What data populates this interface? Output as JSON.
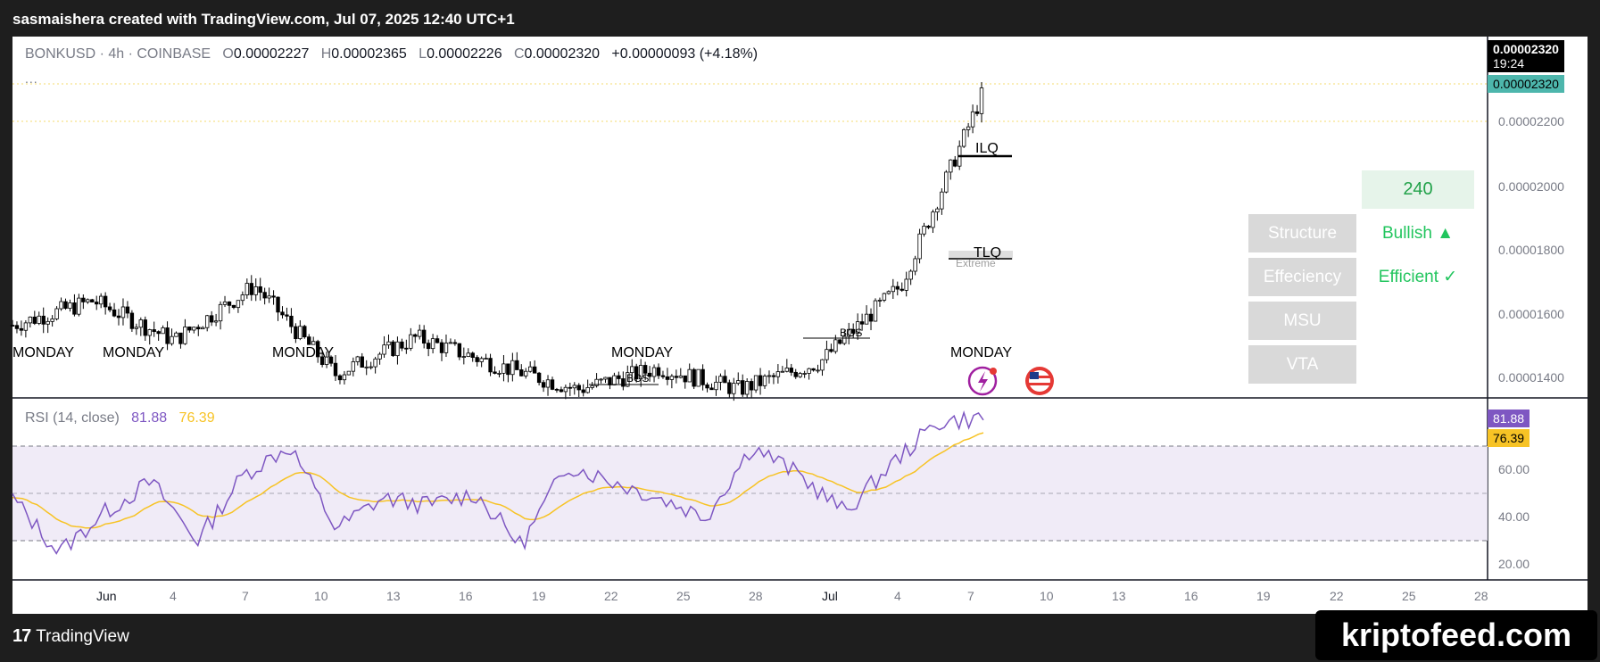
{
  "header": {
    "credit": "sasmaishera created with TradingView.com, Jul 07, 2025 12:40 UTC+1"
  },
  "legend": {
    "symbol": "BONKUSD · 4h · COINBASE",
    "o_label": "O",
    "o_value": "0.00002227",
    "h_label": "H",
    "h_value": "0.00002365",
    "l_label": "L",
    "l_value": "0.00002226",
    "c_label": "C",
    "c_value": "0.00002320",
    "change": "+0.00000093 (+4.18%)",
    "more": "..."
  },
  "rsi_legend": {
    "name": "RSI (14, close)",
    "rsi": "81.88",
    "ma": "76.39"
  },
  "price_tags": {
    "last": "0.00002320",
    "countdown": "19:24",
    "last2": "0.00002320",
    "rsi": "81.88",
    "rsi_ma": "76.39"
  },
  "price_axis": [
    "0.00002200",
    "0.00002000",
    "0.00001800",
    "0.00001600",
    "0.00001400"
  ],
  "rsi_axis": [
    "60.00",
    "40.00",
    "20.00"
  ],
  "time_axis": [
    "Jun",
    "4",
    "7",
    "10",
    "13",
    "16",
    "19",
    "22",
    "25",
    "28",
    "Jul",
    "4",
    "7",
    "10",
    "13",
    "16",
    "19",
    "22",
    "25",
    "28"
  ],
  "annotations": {
    "ilq": "ILQ",
    "tlq": "TLQ",
    "extreme": "Extreme",
    "bos": "BOS",
    "day_label": "MONDAY"
  },
  "table": {
    "timeframe": "240",
    "rows": [
      {
        "label": "Structure",
        "value": "Bullish ▲"
      },
      {
        "label": "Effeciency",
        "value": "Efficient ✓"
      },
      {
        "label": "MSU",
        "value": ""
      },
      {
        "label": "VTA",
        "value": ""
      }
    ]
  },
  "footer": {
    "brand": "TradingView"
  },
  "watermark": "kriptofeed.com",
  "colors": {
    "up": "#26a69a",
    "down": "#000000",
    "rsi": "#7e57c2",
    "rsi_ma": "#f7c325",
    "last_price_bg": "#4db6ac",
    "accent_green": "#22c55e"
  },
  "chart_data": [
    {
      "type": "candlestick",
      "title": "BONKUSD · 4h · COINBASE",
      "x": [
        "Jun",
        "4",
        "7",
        "10",
        "13",
        "16",
        "19",
        "22",
        "25",
        "28",
        "Jul",
        "4",
        "7"
      ],
      "y_approx": [
        1.57e-05,
        1.65e-05,
        1.52e-05,
        1.7e-05,
        1.41e-05,
        1.53e-05,
        1.44e-05,
        1.36e-05,
        1.43e-05,
        1.36e-05,
        1.45e-05,
        1.7e-05,
        2.32e-05
      ],
      "ohlc_last": {
        "open": 2.227e-05,
        "high": 2.365e-05,
        "low": 2.226e-05,
        "close": 2.32e-05
      },
      "ylim": [
        1.35e-05,
        2.4e-05
      ]
    },
    {
      "type": "line",
      "title": "RSI (14, close)",
      "series": [
        {
          "name": "RSI",
          "last": 81.88
        },
        {
          "name": "MA",
          "last": 76.39
        }
      ],
      "levels": [
        70,
        50,
        30
      ],
      "ylim": [
        10,
        90
      ]
    }
  ]
}
